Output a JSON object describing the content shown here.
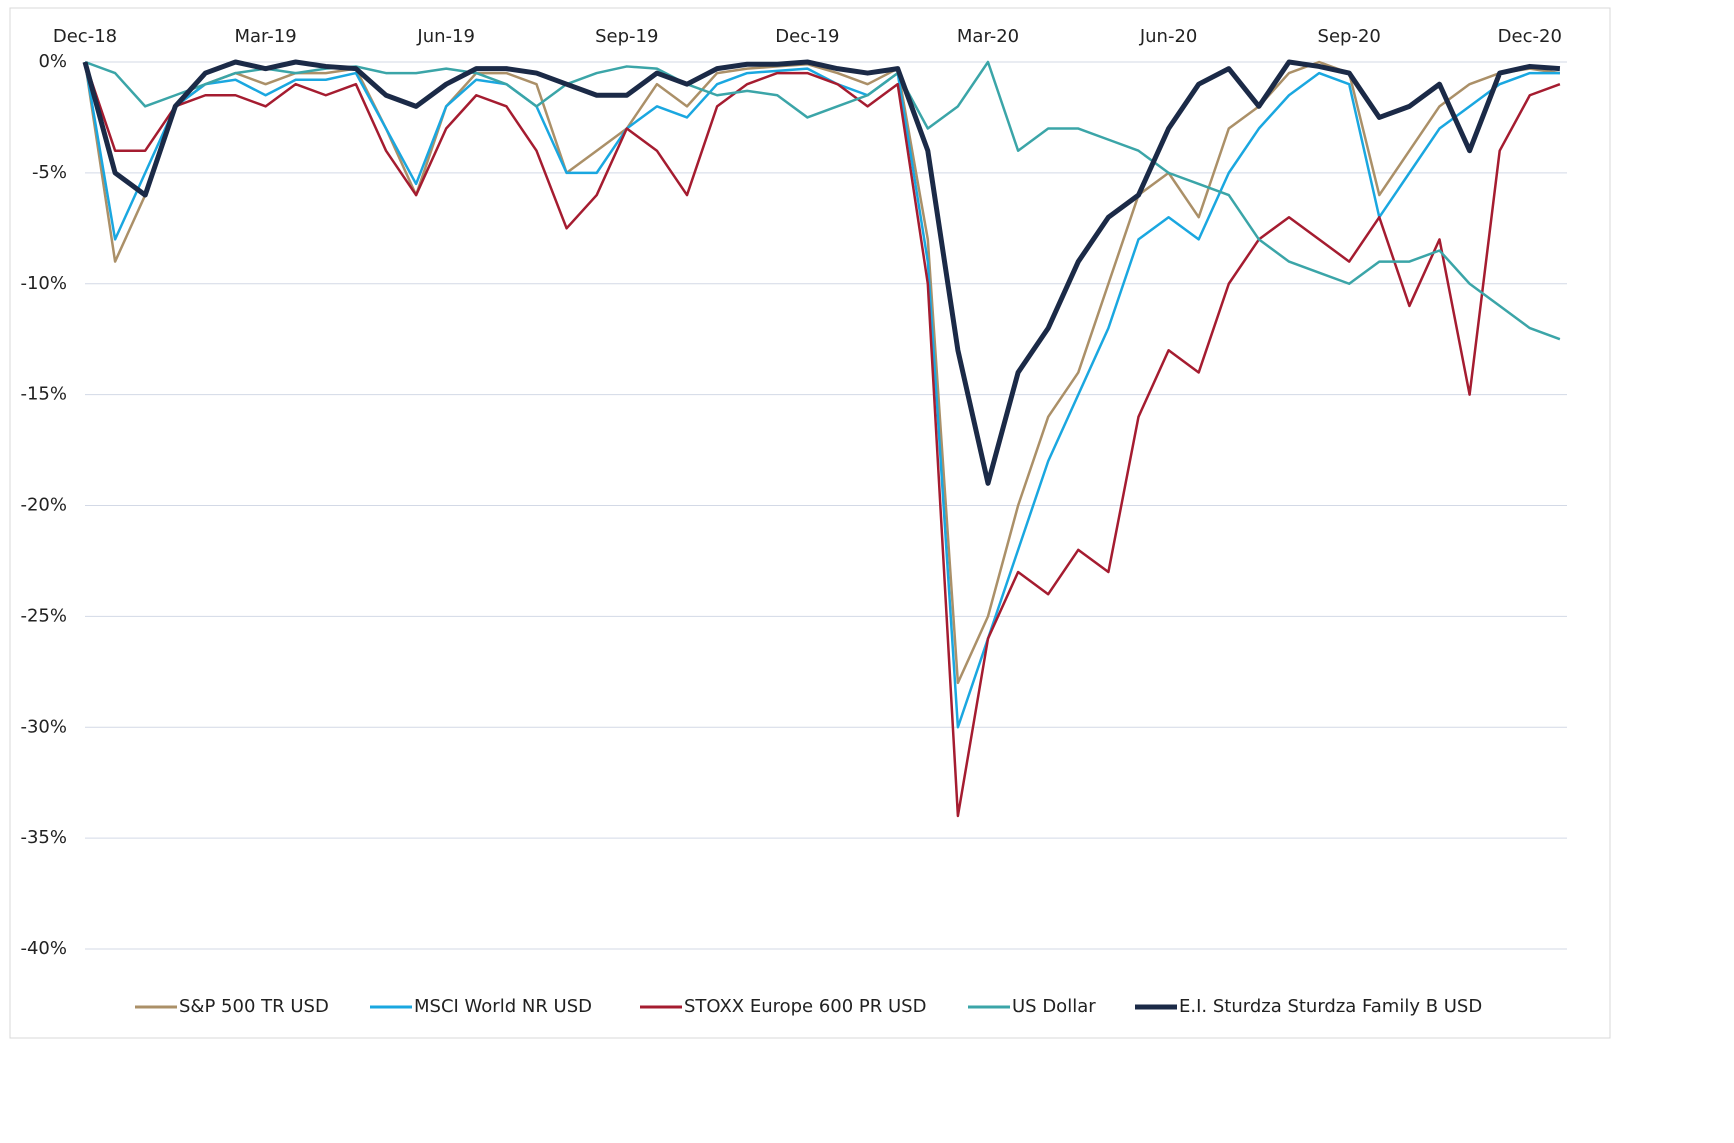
{
  "chart_data": {
    "type": "line",
    "categories": [
      "Dec-18",
      null,
      null,
      null,
      null,
      null,
      "Mar-19",
      null,
      null,
      null,
      null,
      null,
      "Jun-19",
      null,
      null,
      null,
      null,
      null,
      "Sep-19",
      null,
      null,
      null,
      null,
      null,
      "Dec-19",
      null,
      null,
      null,
      null,
      null,
      "Mar-20",
      null,
      null,
      null,
      null,
      null,
      "Jun-20",
      null,
      null,
      null,
      null,
      null,
      "Sep-20",
      null,
      null,
      null,
      null,
      null,
      "Dec-20",
      null
    ],
    "series": [
      {
        "name": "S&P 500 TR USD",
        "color": "#ab9068",
        "values": [
          0,
          -9,
          -6,
          -2,
          -1,
          -0.5,
          -1,
          -0.5,
          -0.5,
          -0.3,
          -3,
          -6,
          -2,
          -0.5,
          -0.5,
          -1,
          -5,
          -4,
          -3,
          -1,
          -2,
          -0.5,
          -0.3,
          -0.2,
          -0.1,
          -0.5,
          -1,
          -0.3,
          -8,
          -28,
          -25,
          -20,
          -16,
          -14,
          -10,
          -6,
          -5,
          -7,
          -3,
          -2,
          -0.5,
          0,
          -0.5,
          -6,
          -4,
          -2,
          -1,
          -0.5,
          -0.3,
          -0.5
        ]
      },
      {
        "name": "MSCI World NR USD",
        "color": "#1aa7e0",
        "values": [
          0,
          -8,
          -5,
          -2,
          -1,
          -0.8,
          -1.5,
          -0.8,
          -0.8,
          -0.5,
          -3,
          -5.5,
          -2,
          -0.8,
          -1,
          -2,
          -5,
          -5,
          -3,
          -2,
          -2.5,
          -1,
          -0.5,
          -0.4,
          -0.3,
          -1,
          -1.5,
          -0.5,
          -9,
          -30,
          -26,
          -22,
          -18,
          -15,
          -12,
          -8,
          -7,
          -8,
          -5,
          -3,
          -1.5,
          -0.5,
          -1,
          -7,
          -5,
          -3,
          -2,
          -1,
          -0.5,
          -0.5
        ]
      },
      {
        "name": "STOXX Europe 600 PR USD",
        "color": "#a51c30",
        "values": [
          0,
          -4,
          -4,
          -2,
          -1.5,
          -1.5,
          -2,
          -1,
          -1.5,
          -1,
          -4,
          -6,
          -3,
          -1.5,
          -2,
          -4,
          -7.5,
          -6,
          -3,
          -4,
          -6,
          -2,
          -1,
          -0.5,
          -0.5,
          -1,
          -2,
          -1,
          -10,
          -34,
          -26,
          -23,
          -24,
          -22,
          -23,
          -16,
          -13,
          -14,
          -10,
          -8,
          -7,
          -8,
          -9,
          -7,
          -11,
          -8,
          -15,
          -4,
          -1.5,
          -1
        ]
      },
      {
        "name": "US Dollar",
        "color": "#3ba5a8",
        "values": [
          0,
          -0.5,
          -2,
          -1.5,
          -1,
          -0.5,
          -0.3,
          -0.5,
          -0.3,
          -0.2,
          -0.5,
          -0.5,
          -0.3,
          -0.5,
          -1,
          -2,
          -1,
          -0.5,
          -0.2,
          -0.3,
          -1,
          -1.5,
          -1.3,
          -1.5,
          -2.5,
          -2,
          -1.5,
          -0.5,
          -3,
          -2,
          0,
          -4,
          -3,
          -3,
          -3.5,
          -4,
          -5,
          -5.5,
          -6,
          -8,
          -9,
          -9.5,
          -10,
          -9,
          -9,
          -8.5,
          -10,
          -11,
          -12,
          -12.5
        ]
      },
      {
        "name": "E.I. Sturdza Sturdza Family B USD",
        "color": "#1b2a47",
        "values": [
          0,
          -5,
          -6,
          -2,
          -0.5,
          0,
          -0.3,
          0,
          -0.2,
          -0.3,
          -1.5,
          -2,
          -1,
          -0.3,
          -0.3,
          -0.5,
          -1,
          -1.5,
          -1.5,
          -0.5,
          -1,
          -0.3,
          -0.1,
          -0.1,
          0,
          -0.3,
          -0.5,
          -0.3,
          -4,
          -13,
          -19,
          -14,
          -12,
          -9,
          -7,
          -6,
          -3,
          -1,
          -0.3,
          -2,
          0,
          -0.2,
          -0.5,
          -2.5,
          -2,
          -1,
          -4,
          -0.5,
          -0.2,
          -0.3
        ]
      }
    ],
    "ylim": [
      -40,
      0
    ],
    "yticks": [
      {
        "value": 0,
        "label": "0%"
      },
      {
        "value": -5,
        "label": "-5%"
      },
      {
        "value": -10,
        "label": "-10%"
      },
      {
        "value": -15,
        "label": "-15%"
      },
      {
        "value": -20,
        "label": "-20%"
      },
      {
        "value": -25,
        "label": "-25%"
      },
      {
        "value": -30,
        "label": "-30%"
      },
      {
        "value": -35,
        "label": "-35%"
      },
      {
        "value": -40,
        "label": "-40%"
      }
    ],
    "grid": true,
    "legend": "bottom"
  }
}
